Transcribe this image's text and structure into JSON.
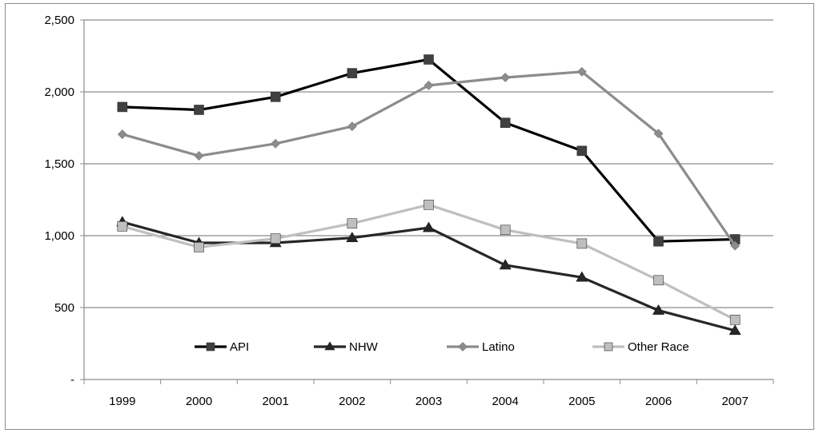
{
  "chart_data": {
    "type": "line",
    "title": "",
    "xlabel": "",
    "ylabel": "",
    "x": [
      "1999",
      "2000",
      "2001",
      "2002",
      "2003",
      "2004",
      "2005",
      "2006",
      "2007"
    ],
    "ylim": [
      0,
      2500
    ],
    "yticks": [
      {
        "value": 0,
        "label": "-"
      },
      {
        "value": 500,
        "label": "500"
      },
      {
        "value": 1000,
        "label": "1,000"
      },
      {
        "value": 1500,
        "label": "1,500"
      },
      {
        "value": 2000,
        "label": "2,000"
      },
      {
        "value": 2500,
        "label": "2,500"
      }
    ],
    "grid": true,
    "legend_position": "bottom-inside",
    "series": [
      {
        "name": "API",
        "color": "#000000",
        "marker": "square",
        "marker_color": "#404040",
        "values": [
          1895,
          1875,
          1965,
          2130,
          2225,
          1785,
          1590,
          960,
          975
        ]
      },
      {
        "name": "NHW",
        "color": "#262626",
        "marker": "triangle",
        "marker_color": "#262626",
        "values": [
          1095,
          950,
          950,
          985,
          1055,
          795,
          710,
          480,
          340
        ]
      },
      {
        "name": "Latino",
        "color": "#8c8c8c",
        "marker": "diamond",
        "marker_color": "#8c8c8c",
        "values": [
          1705,
          1555,
          1640,
          1760,
          2045,
          2100,
          2140,
          1710,
          930
        ]
      },
      {
        "name": "Other Race",
        "color": "#bfbfbf",
        "marker": "square",
        "marker_color": "#bfbfbf",
        "values": [
          1065,
          920,
          980,
          1085,
          1215,
          1040,
          945,
          690,
          415
        ]
      }
    ]
  }
}
